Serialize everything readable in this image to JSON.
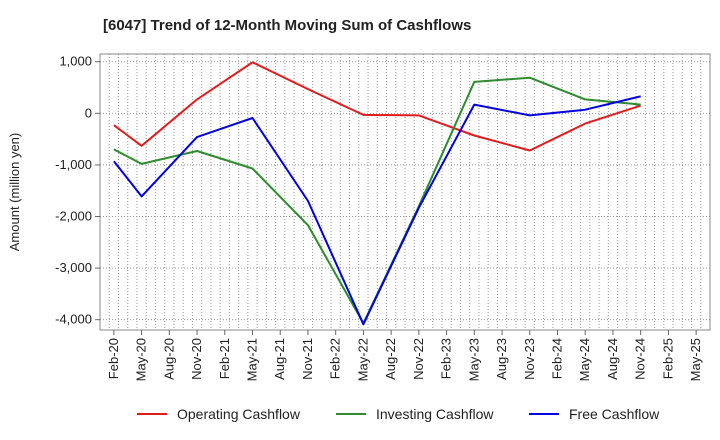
{
  "chart_data": {
    "type": "line",
    "title": "[6047]  Trend of 12-Month Moving Sum of Cashflows",
    "xlabel": "",
    "ylabel": "Amount (million yen)",
    "ylim": [
      -4200,
      1150
    ],
    "yticks": [
      1000,
      0,
      -1000,
      -2000,
      -3000,
      -4000
    ],
    "ytick_labels": [
      "1,000",
      "0",
      "-1,000",
      "-2,000",
      "-3,000",
      "-4,000"
    ],
    "categories": [
      "Feb-20",
      "May-20",
      "Aug-20",
      "Nov-20",
      "Feb-21",
      "May-21",
      "Aug-21",
      "Nov-21",
      "Feb-22",
      "May-22",
      "Aug-22",
      "Nov-22",
      "Feb-23",
      "May-23",
      "Aug-23",
      "Nov-23",
      "Feb-24",
      "May-24",
      "Aug-24",
      "Nov-24",
      "Feb-25",
      "May-25"
    ],
    "grid": true,
    "legend_position": "bottom",
    "series": [
      {
        "name": "Operating Cashflow",
        "color": "#e31a1c",
        "x": [
          "Feb-20",
          "May-20",
          "Nov-20",
          "May-21",
          "Nov-21",
          "May-22",
          "Nov-22",
          "May-23",
          "Nov-23",
          "May-24",
          "Nov-24"
        ],
        "values": [
          -230,
          -630,
          270,
          990,
          470,
          -30,
          -40,
          -430,
          -720,
          -200,
          150
        ]
      },
      {
        "name": "Investing Cashflow",
        "color": "#2e8b2e",
        "x": [
          "Feb-20",
          "May-20",
          "Nov-20",
          "May-21",
          "Nov-21",
          "May-22",
          "Nov-22",
          "May-23",
          "Nov-23",
          "May-24",
          "Nov-24"
        ],
        "values": [
          -700,
          -980,
          -730,
          -1070,
          -2170,
          -4070,
          -1800,
          610,
          690,
          270,
          170
        ]
      },
      {
        "name": "Free Cashflow",
        "color": "#0000e0",
        "x": [
          "Feb-20",
          "May-20",
          "Nov-20",
          "May-21",
          "Nov-21",
          "May-22",
          "Nov-22",
          "May-23",
          "Nov-23",
          "May-24",
          "Nov-24"
        ],
        "values": [
          -930,
          -1610,
          -460,
          -90,
          -1700,
          -4090,
          -1830,
          170,
          -40,
          70,
          330
        ]
      }
    ]
  }
}
